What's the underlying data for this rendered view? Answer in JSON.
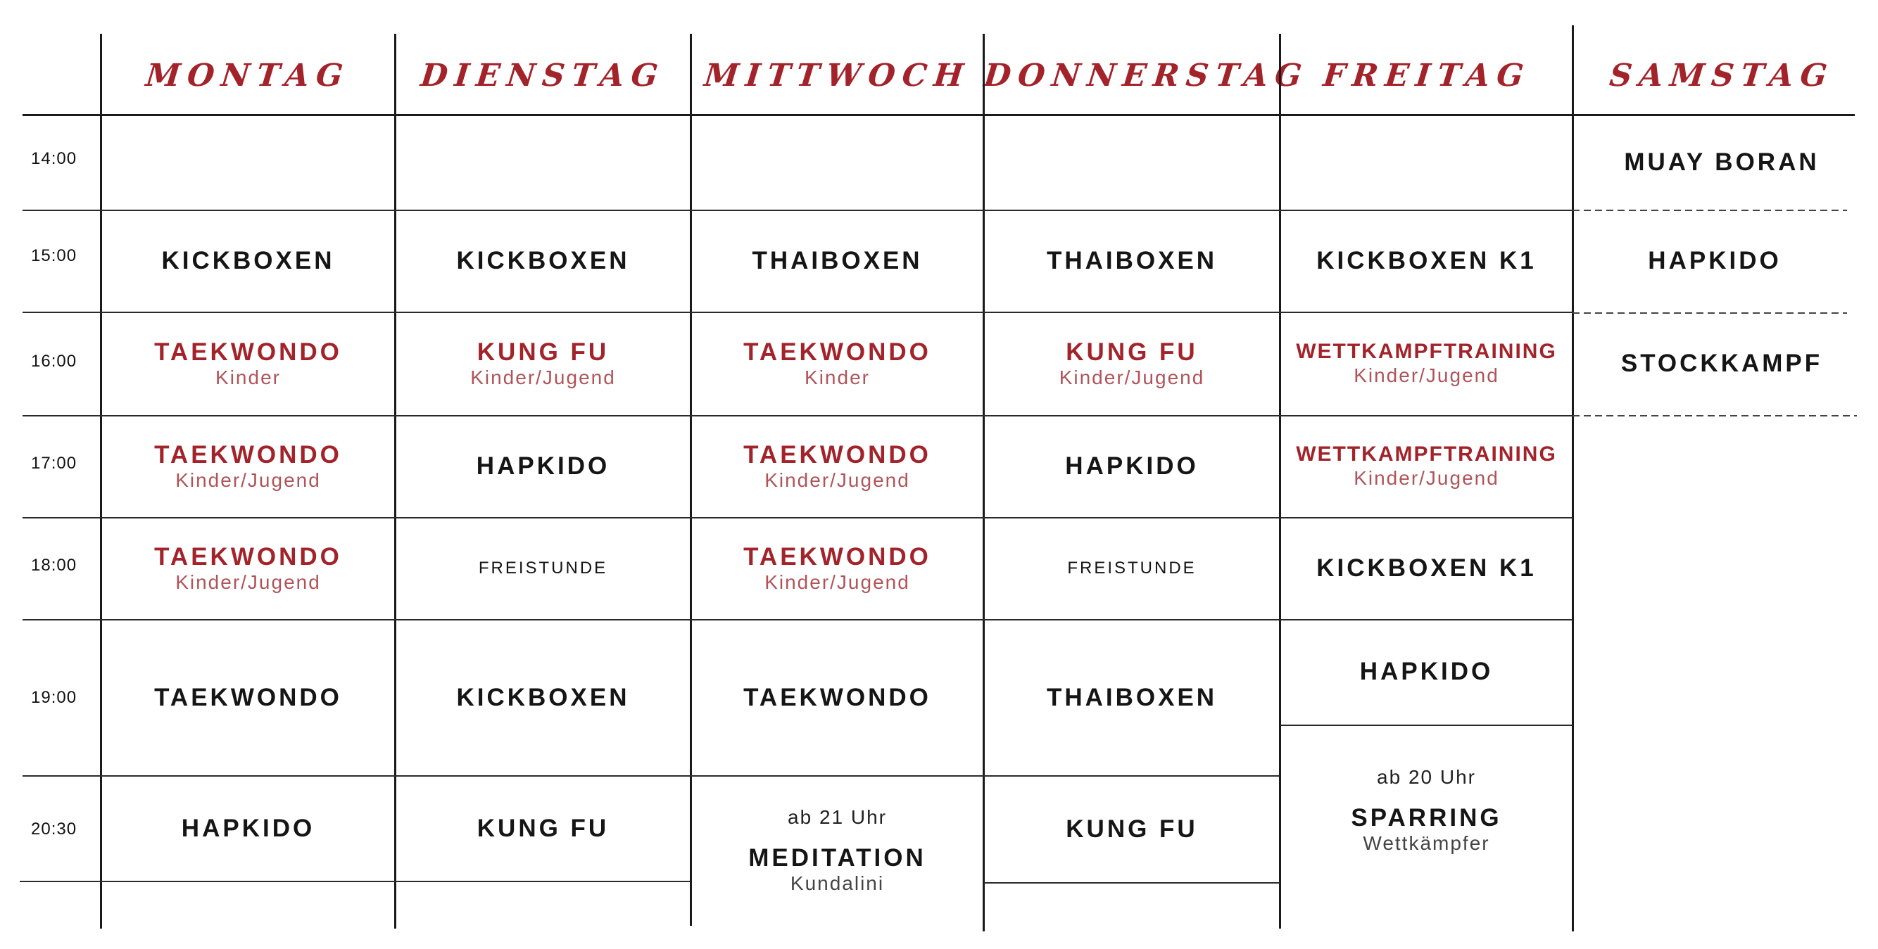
{
  "days": [
    "MONTAG",
    "DIENSTAG",
    "MITTWOCH",
    "DONNERSTAG",
    "FREITAG",
    "SAMSTAG"
  ],
  "times": [
    "14:00",
    "15:00",
    "16:00",
    "17:00",
    "18:00",
    "19:00",
    "20:30"
  ],
  "colors": {
    "accent": "#a3232a",
    "sub_accent": "#b0545a",
    "text": "#151515",
    "line": "#1a1a1a"
  },
  "cells": {
    "mo": [
      {
        "label": "KICKBOXEN"
      },
      {
        "label": "TAEKWONDO",
        "sub": "Kinder"
      },
      {
        "label": "TAEKWONDO",
        "sub": "Kinder/Jugend"
      },
      {
        "label": "TAEKWONDO",
        "sub": "Kinder/Jugend"
      },
      {
        "label": "TAEKWONDO"
      },
      {
        "label": "HAPKIDO"
      }
    ],
    "di": [
      {
        "label": "KICKBOXEN"
      },
      {
        "label": "KUNG FU",
        "sub": "Kinder/Jugend"
      },
      {
        "label": "HAPKIDO"
      },
      {
        "label": "FREISTUNDE"
      },
      {
        "label": "KICKBOXEN"
      },
      {
        "label": "KUNG FU"
      }
    ],
    "mi": [
      {
        "label": "THAIBOXEN"
      },
      {
        "label": "TAEKWONDO",
        "sub": "Kinder"
      },
      {
        "label": "TAEKWONDO",
        "sub": "Kinder/Jugend"
      },
      {
        "label": "TAEKWONDO",
        "sub": "Kinder/Jugend"
      },
      {
        "label": "TAEKWONDO"
      },
      {
        "pre": "ab 21 Uhr",
        "label": "MEDITATION",
        "sub": "Kundalini"
      }
    ],
    "do": [
      {
        "label": "THAIBOXEN"
      },
      {
        "label": "KUNG FU",
        "sub": "Kinder/Jugend"
      },
      {
        "label": "HAPKIDO"
      },
      {
        "label": "FREISTUNDE"
      },
      {
        "label": "THAIBOXEN"
      },
      {
        "label": "KUNG FU"
      }
    ],
    "fr": [
      {
        "label": "KICKBOXEN  K1"
      },
      {
        "label": "WETTKAMPFTRAINING",
        "sub": "Kinder/Jugend"
      },
      {
        "label": "WETTKAMPFTRAINING",
        "sub": "Kinder/Jugend"
      },
      {
        "label": "KICKBOXEN  K1"
      },
      {
        "label": "HAPKIDO"
      },
      {
        "pre": "ab 20 Uhr",
        "label": "SPARRING",
        "sub": "Wettkämpfer"
      }
    ],
    "sa": [
      {
        "label": "MUAY BORAN"
      },
      {
        "label": "HAPKIDO"
      },
      {
        "label": "STOCKKAMPF"
      }
    ]
  }
}
